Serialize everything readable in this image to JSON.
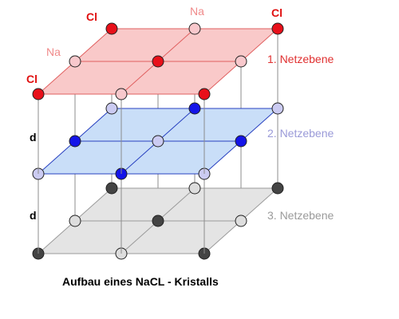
{
  "diagram": {
    "caption": "Aufbau eines NaCL - Kristalls",
    "atoms": {
      "cl": "Cl",
      "na": "Na"
    },
    "spacing_label": "d",
    "planes": [
      {
        "name": "1. Netzebene",
        "fill": "#f9c9c9",
        "edge": "#e06060",
        "label_color": "#e03030",
        "dark": "#e8101a",
        "light": "#f8c8cc"
      },
      {
        "name": "2. Netzebene",
        "fill": "#c9def8",
        "edge": "#2840c0",
        "label_color": "#9a9ad8",
        "dark": "#1414e8",
        "light": "#cbcbf2"
      },
      {
        "name": "3. Netzebene",
        "fill": "#e4e4e4",
        "edge": "#9a9a9a",
        "label_color": "#9a9a9a",
        "dark": "#444444",
        "light": "#dddddd"
      }
    ],
    "colors": {
      "cl_label": "#e01010",
      "na_label": "#f08a8a",
      "vertical_lines": "#8c8c8c",
      "back_lines": "#9a9a9a"
    }
  }
}
